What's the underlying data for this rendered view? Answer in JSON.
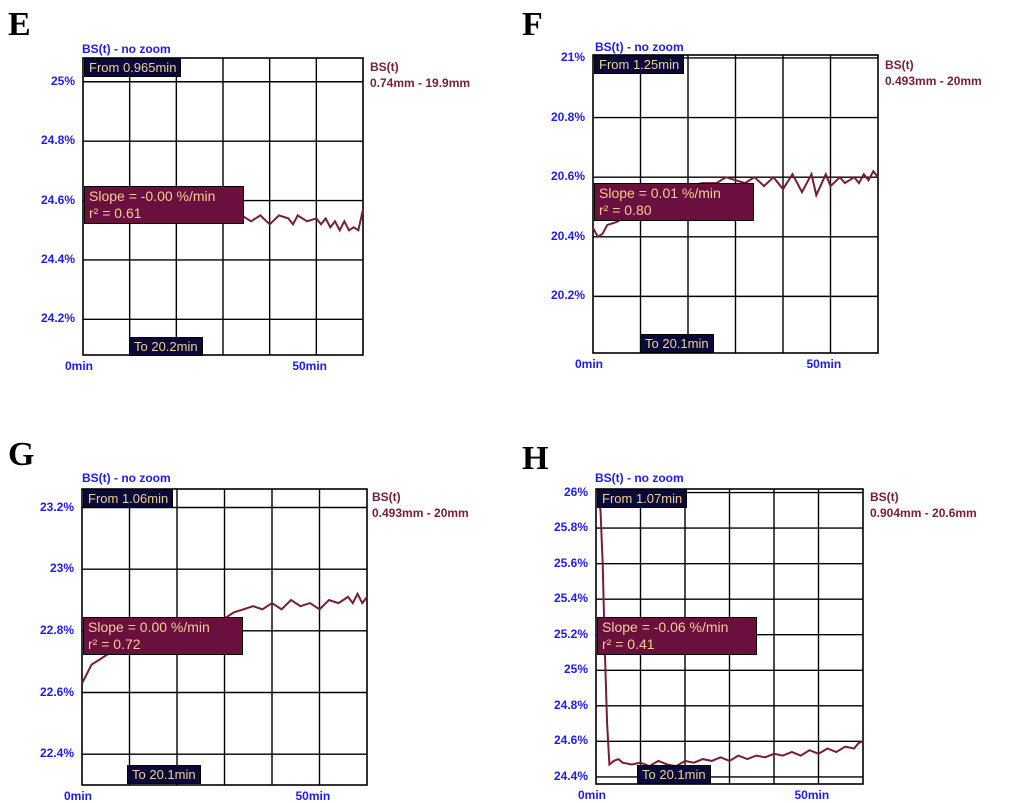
{
  "chart_data": [
    {
      "type": "line",
      "panel_letter": "E",
      "header": "BS(t) - no zoom",
      "legend": {
        "name": "BS(t)",
        "range": "0.74mm - 19.9mm"
      },
      "y_ticks": [
        "25%",
        "24.8%",
        "24.6%",
        "24.4%",
        "24.2%"
      ],
      "y_tick_values": [
        25.0,
        24.8,
        24.6,
        24.4,
        24.2
      ],
      "x_ticks": [
        "0min",
        "50min"
      ],
      "x_tick_values": [
        0,
        50
      ],
      "ylim": [
        24.08,
        25.08
      ],
      "xlim": [
        0,
        60
      ],
      "from_label": "From 0.965min",
      "to_label": "To 20.2min",
      "slope_label": "Slope = -0.00 %/min",
      "r2_label": "r² = 0.61",
      "series": [
        {
          "values": [
            [
              0.965,
              24.6
            ],
            [
              4,
              24.59
            ],
            [
              8,
              24.58
            ],
            [
              12,
              24.57
            ],
            [
              16,
              24.56
            ],
            [
              20,
              24.56
            ],
            [
              24,
              24.55
            ],
            [
              28,
              24.56
            ],
            [
              30,
              24.55
            ],
            [
              32,
              24.56
            ],
            [
              34,
              24.55
            ],
            [
              36,
              24.53
            ],
            [
              38,
              24.55
            ],
            [
              40,
              24.52
            ],
            [
              42,
              24.55
            ],
            [
              44,
              24.54
            ],
            [
              45,
              24.52
            ],
            [
              46,
              24.55
            ],
            [
              48,
              24.53
            ],
            [
              50,
              24.54
            ],
            [
              51,
              24.52
            ],
            [
              52,
              24.54
            ],
            [
              53,
              24.51
            ],
            [
              54,
              24.53
            ],
            [
              55,
              24.5
            ],
            [
              56,
              24.53
            ],
            [
              57,
              24.5
            ],
            [
              58,
              24.51
            ],
            [
              59,
              24.5
            ],
            [
              60,
              24.57
            ]
          ]
        }
      ]
    },
    {
      "type": "line",
      "panel_letter": "F",
      "header": "BS(t) - no zoom",
      "legend": {
        "name": "BS(t)",
        "range": "0.493mm - 20mm"
      },
      "y_ticks": [
        "21%",
        "20.8%",
        "20.6%",
        "20.4%",
        "20.2%"
      ],
      "y_tick_values": [
        21.0,
        20.8,
        20.6,
        20.4,
        20.2
      ],
      "x_ticks": [
        "0min",
        "50min"
      ],
      "x_tick_values": [
        0,
        50
      ],
      "ylim": [
        20.01,
        21.01
      ],
      "xlim": [
        0,
        60
      ],
      "from_label": "From 1.25min",
      "to_label": "To 20.1min",
      "slope_label": "Slope = 0.01 %/min",
      "r2_label": "r² = 0.80",
      "series": [
        {
          "values": [
            [
              0,
              20.43
            ],
            [
              1,
              20.4
            ],
            [
              2,
              20.41
            ],
            [
              3,
              20.44
            ],
            [
              5,
              20.45
            ],
            [
              7,
              20.47
            ],
            [
              9,
              20.5
            ],
            [
              11,
              20.52
            ],
            [
              14,
              20.54
            ],
            [
              17,
              20.56
            ],
            [
              20,
              20.57
            ],
            [
              23,
              20.58
            ],
            [
              26,
              20.58
            ],
            [
              28,
              20.6
            ],
            [
              30,
              20.59
            ],
            [
              32,
              20.58
            ],
            [
              34,
              20.6
            ],
            [
              36,
              20.57
            ],
            [
              38,
              20.6
            ],
            [
              40,
              20.56
            ],
            [
              42,
              20.61
            ],
            [
              44,
              20.55
            ],
            [
              46,
              20.61
            ],
            [
              47,
              20.54
            ],
            [
              49,
              20.61
            ],
            [
              50,
              20.57
            ],
            [
              52,
              20.6
            ],
            [
              53,
              20.58
            ],
            [
              55,
              20.6
            ],
            [
              56,
              20.58
            ],
            [
              57,
              20.61
            ],
            [
              58,
              20.59
            ],
            [
              59,
              20.62
            ],
            [
              60,
              20.6
            ]
          ]
        }
      ]
    },
    {
      "type": "line",
      "panel_letter": "G",
      "header": "BS(t) - no zoom",
      "legend": {
        "name": "BS(t)",
        "range": "0.493mm - 20mm"
      },
      "y_ticks": [
        "23.2%",
        "23%",
        "22.8%",
        "22.6%",
        "22.4%"
      ],
      "y_tick_values": [
        23.2,
        23.0,
        22.8,
        22.6,
        22.4
      ],
      "x_ticks": [
        "0min",
        "50min"
      ],
      "x_tick_values": [
        0,
        50
      ],
      "ylim": [
        22.3,
        23.26
      ],
      "xlim": [
        0,
        60
      ],
      "from_label": "From 1.06min",
      "to_label": "To 20.1min",
      "slope_label": "Slope = 0.00 %/min",
      "r2_label": "r² = 0.72",
      "series": [
        {
          "values": [
            [
              0,
              22.63
            ],
            [
              1,
              22.66
            ],
            [
              2,
              22.69
            ],
            [
              4,
              22.71
            ],
            [
              6,
              22.73
            ],
            [
              8,
              22.76
            ],
            [
              10,
              22.78
            ],
            [
              13,
              22.8
            ],
            [
              16,
              22.81
            ],
            [
              20,
              22.82
            ],
            [
              24,
              22.83
            ],
            [
              28,
              22.84
            ],
            [
              30,
              22.84
            ],
            [
              32,
              22.86
            ],
            [
              34,
              22.87
            ],
            [
              36,
              22.88
            ],
            [
              38,
              22.87
            ],
            [
              40,
              22.89
            ],
            [
              42,
              22.87
            ],
            [
              44,
              22.9
            ],
            [
              46,
              22.88
            ],
            [
              48,
              22.89
            ],
            [
              50,
              22.87
            ],
            [
              52,
              22.9
            ],
            [
              54,
              22.89
            ],
            [
              56,
              22.91
            ],
            [
              57,
              22.89
            ],
            [
              58,
              22.92
            ],
            [
              59,
              22.89
            ],
            [
              60,
              22.91
            ]
          ]
        }
      ]
    },
    {
      "type": "line",
      "panel_letter": "H",
      "header": "BS(t) - no zoom",
      "legend": {
        "name": "BS(t)",
        "range": "0.904mm - 20.6mm"
      },
      "y_ticks": [
        "26%",
        "25.8%",
        "25.6%",
        "25.4%",
        "25.2%",
        "25%",
        "24.8%",
        "24.6%",
        "24.4%"
      ],
      "y_tick_values": [
        26.0,
        25.8,
        25.6,
        25.4,
        25.2,
        25.0,
        24.8,
        24.6,
        24.4
      ],
      "x_ticks": [
        "0min",
        "50min"
      ],
      "x_tick_values": [
        0,
        50
      ],
      "ylim": [
        24.36,
        26.02
      ],
      "xlim": [
        0,
        60
      ],
      "from_label": "From 1.07min",
      "to_label": "To 20.1min",
      "slope_label": "Slope = -0.06 %/min",
      "r2_label": "r² = 0.41",
      "series": [
        {
          "values": [
            [
              0,
              26.0
            ],
            [
              0.5,
              25.98
            ],
            [
              1,
              25.9
            ],
            [
              1.5,
              25.6
            ],
            [
              2,
              25.1
            ],
            [
              2.5,
              24.7
            ],
            [
              3,
              24.47
            ],
            [
              4,
              24.49
            ],
            [
              5,
              24.5
            ],
            [
              6,
              24.48
            ],
            [
              8,
              24.47
            ],
            [
              10,
              24.48
            ],
            [
              12,
              24.46
            ],
            [
              14,
              24.49
            ],
            [
              16,
              24.47
            ],
            [
              18,
              24.46
            ],
            [
              20,
              24.49
            ],
            [
              22,
              24.48
            ],
            [
              24,
              24.5
            ],
            [
              26,
              24.49
            ],
            [
              28,
              24.51
            ],
            [
              30,
              24.49
            ],
            [
              32,
              24.52
            ],
            [
              34,
              24.5
            ],
            [
              36,
              24.52
            ],
            [
              38,
              24.51
            ],
            [
              40,
              24.53
            ],
            [
              42,
              24.52
            ],
            [
              44,
              24.54
            ],
            [
              46,
              24.52
            ],
            [
              48,
              24.55
            ],
            [
              50,
              24.53
            ],
            [
              52,
              24.56
            ],
            [
              54,
              24.54
            ],
            [
              56,
              24.57
            ],
            [
              58,
              24.56
            ],
            [
              59,
              24.59
            ],
            [
              60,
              24.6
            ]
          ]
        }
      ]
    }
  ]
}
